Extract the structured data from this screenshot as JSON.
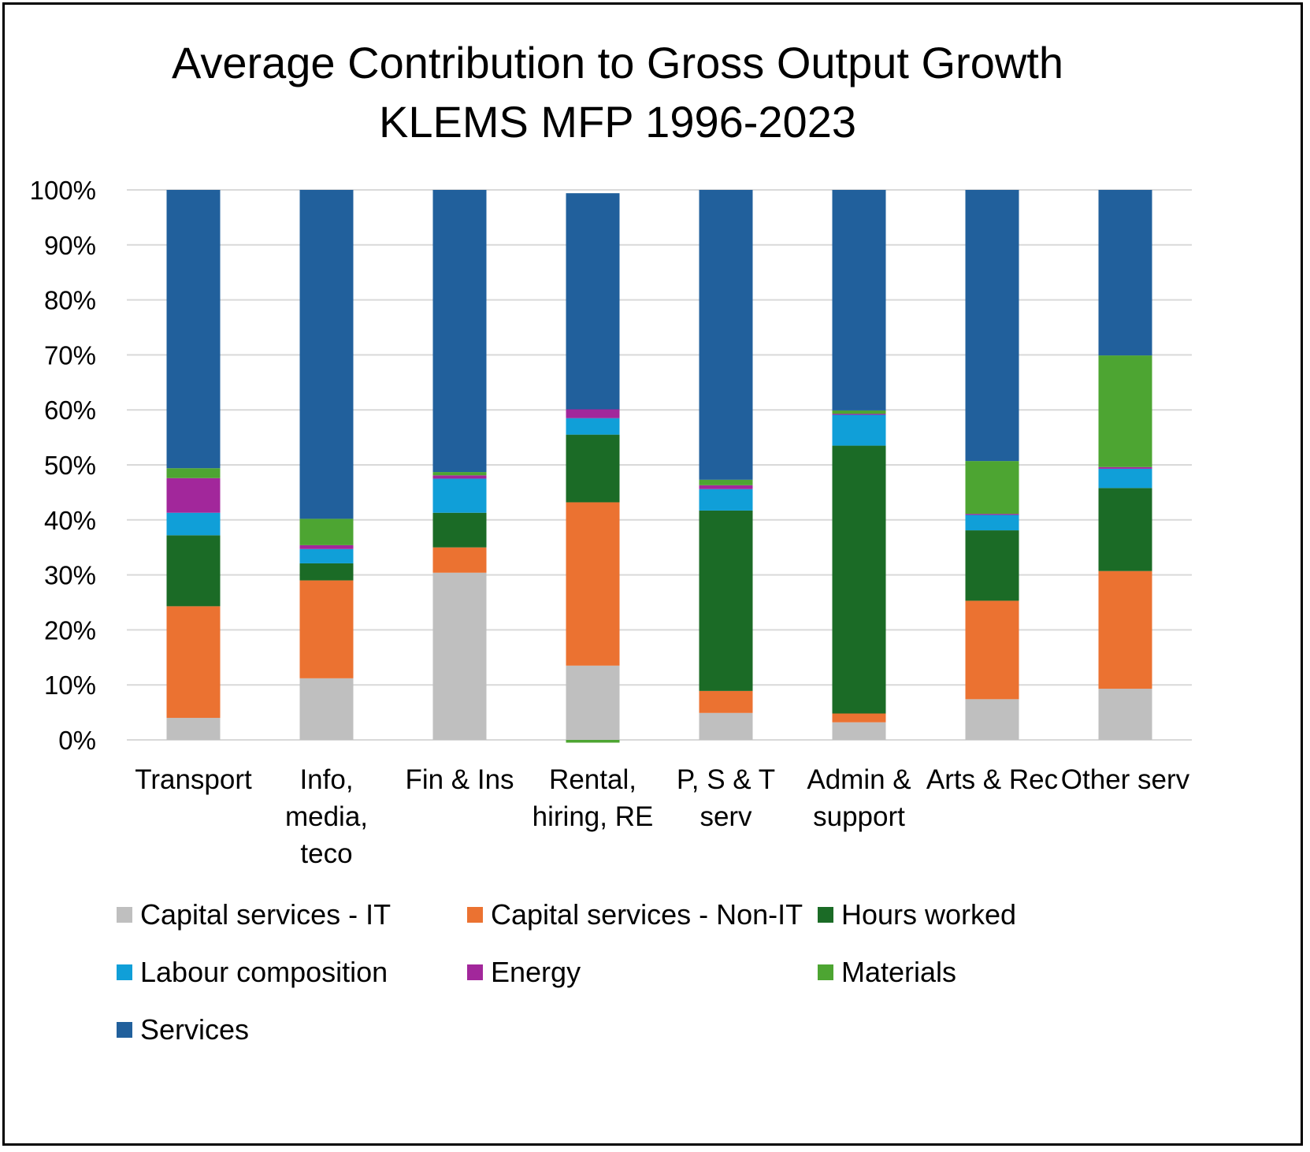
{
  "chart_data": {
    "type": "bar",
    "stacked": true,
    "title": "Average Contribution to Gross Output Growth",
    "subtitle": "KLEMS MFP 1996-2023",
    "xlabel": "",
    "ylabel": "",
    "ylim": [
      0,
      100
    ],
    "y_ticks": [
      "0%",
      "10%",
      "20%",
      "30%",
      "40%",
      "50%",
      "60%",
      "70%",
      "80%",
      "90%",
      "100%"
    ],
    "grid": true,
    "legend_position": "bottom",
    "categories": [
      [
        "Transport"
      ],
      [
        "Info,",
        "media,",
        "teco"
      ],
      [
        "Fin & Ins"
      ],
      [
        "Rental,",
        "hiring, RE"
      ],
      [
        "P, S & T",
        "serv"
      ],
      [
        "Admin &",
        "support"
      ],
      [
        "Arts & Rec"
      ],
      [
        "Other serv"
      ]
    ],
    "series": [
      {
        "name": "Capital services - IT",
        "color": "#bfbfbf",
        "values": [
          4.0,
          11.2,
          30.4,
          13.5,
          4.9,
          3.2,
          7.4,
          9.3
        ]
      },
      {
        "name": "Capital services - Non-IT",
        "color": "#eb7231",
        "values": [
          20.3,
          17.8,
          4.6,
          29.7,
          4.0,
          1.6,
          17.9,
          21.4
        ]
      },
      {
        "name": "Hours worked",
        "color": "#1b6b26",
        "values": [
          12.9,
          3.1,
          6.3,
          12.3,
          32.8,
          48.7,
          12.8,
          15.1
        ]
      },
      {
        "name": "Labour composition",
        "color": "#109fd8",
        "values": [
          4.1,
          2.6,
          6.2,
          3.0,
          3.9,
          5.6,
          2.8,
          3.5
        ]
      },
      {
        "name": "Energy",
        "color": "#a2279b",
        "values": [
          6.3,
          0.7,
          0.6,
          1.6,
          0.7,
          0.2,
          0.2,
          0.3
        ]
      },
      {
        "name": "Materials",
        "color": "#4da532",
        "values": [
          1.8,
          4.8,
          0.6,
          -0.5,
          1.0,
          0.6,
          9.6,
          20.3
        ]
      },
      {
        "name": "Services",
        "color": "#21609c",
        "values": [
          50.6,
          59.8,
          51.3,
          39.3,
          52.7,
          40.1,
          49.3,
          30.1
        ]
      }
    ]
  }
}
